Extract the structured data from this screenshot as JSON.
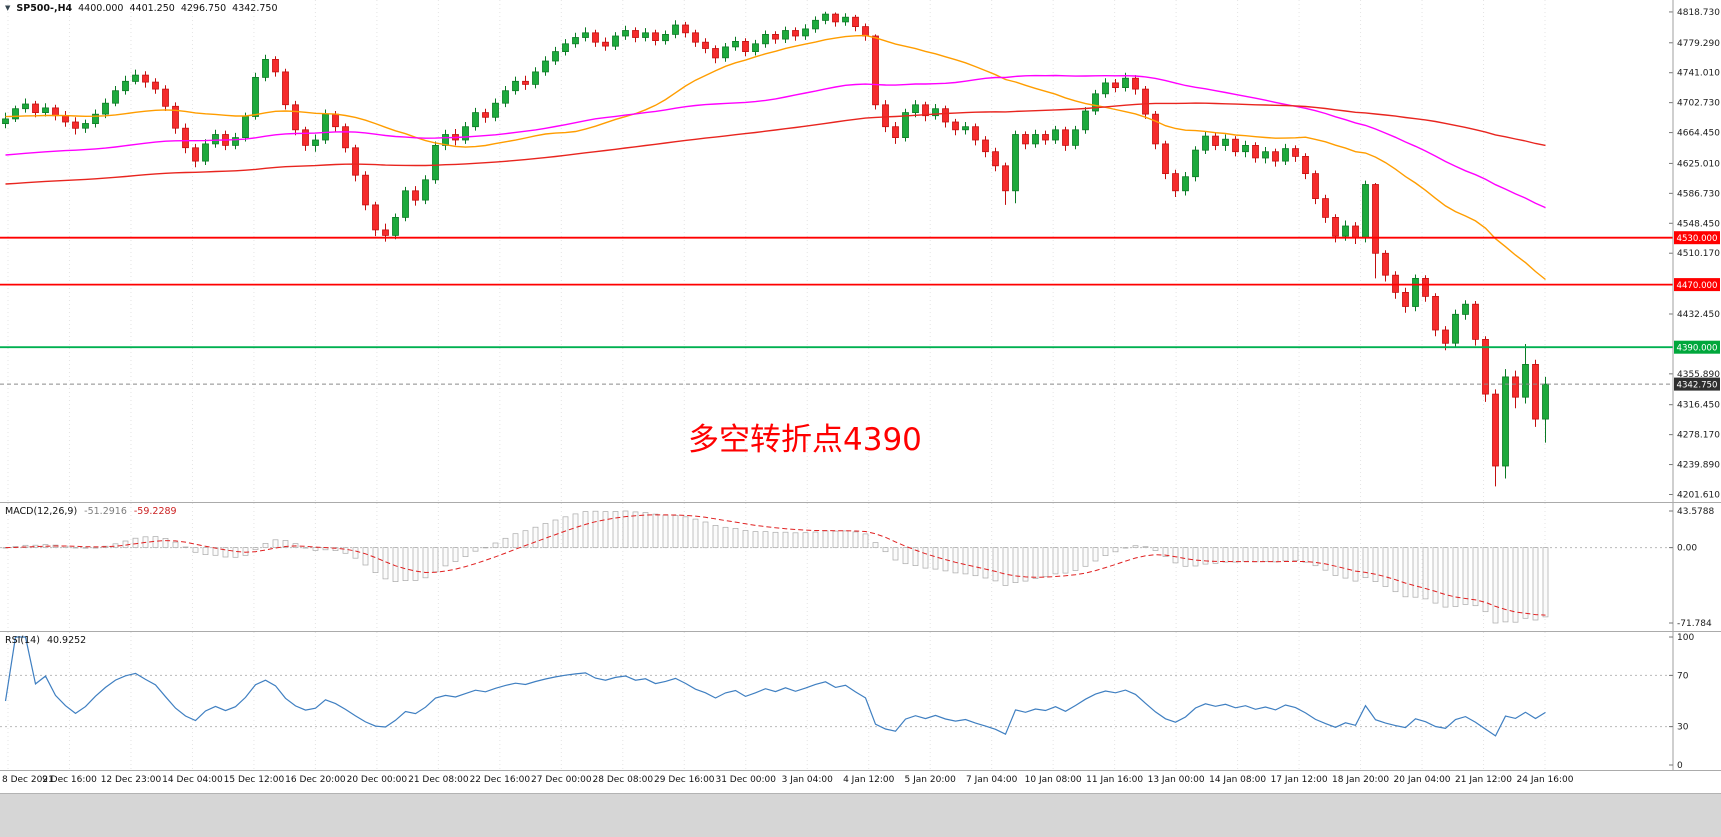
{
  "chart_data": {
    "type": "candlestick",
    "symbol_header": {
      "symbol": "SP500-,H4",
      "open": "4400.000",
      "high": "4401.250",
      "low": "4296.750",
      "close": "4342.750"
    },
    "annotation": {
      "text": "多空转折点4390",
      "color": "#ff0000"
    },
    "ylim": {
      "top": 4834,
      "bottom": 4192
    },
    "price_axis_labels": [
      4818.73,
      4779.29,
      4741.01,
      4702.73,
      4664.45,
      4625.01,
      4586.73,
      4548.45,
      4510.17,
      4432.45,
      4355.89,
      4316.45,
      4278.17,
      4239.89,
      4201.61
    ],
    "levels": [
      {
        "value": 4530.0,
        "label": "4530.000",
        "color": "#ff0000",
        "badge": "#ff0000"
      },
      {
        "value": 4470.0,
        "label": "4470.000",
        "color": "#ff0000",
        "badge": "#ff0000"
      },
      {
        "value": 4390.0,
        "label": "4390.000",
        "color": "#00b050",
        "badge": "#00a73c"
      }
    ],
    "current_price": {
      "value": 4342.75,
      "label": "4342.750",
      "badge": "#2f2f2f"
    },
    "candle_colors": {
      "up": "#1caa3c",
      "up_border": "#0b7a24",
      "down": "#f52b2b",
      "down_border": "#c40f0f"
    },
    "moving_averages": [
      {
        "period": 30,
        "color": "#ff9d00",
        "seed": 4685
      },
      {
        "period": 60,
        "color": "#ff00ff",
        "seed": 4635
      },
      {
        "period": 120,
        "color": "#e8251f",
        "seed": 4598
      }
    ],
    "candles": [
      [
        4676,
        4690,
        4670,
        4682
      ],
      [
        4682,
        4699,
        4678,
        4695
      ],
      [
        4695,
        4708,
        4690,
        4701
      ],
      [
        4701,
        4705,
        4684,
        4690
      ],
      [
        4690,
        4702,
        4685,
        4696
      ],
      [
        4696,
        4700,
        4680,
        4686
      ],
      [
        4686,
        4692,
        4672,
        4678
      ],
      [
        4678,
        4684,
        4662,
        4670
      ],
      [
        4670,
        4681,
        4664,
        4676
      ],
      [
        4676,
        4694,
        4671,
        4688
      ],
      [
        4688,
        4708,
        4683,
        4702
      ],
      [
        4702,
        4724,
        4698,
        4718
      ],
      [
        4718,
        4737,
        4713,
        4730
      ],
      [
        4730,
        4745,
        4726,
        4738
      ],
      [
        4738,
        4743,
        4722,
        4729
      ],
      [
        4729,
        4734,
        4714,
        4720
      ],
      [
        4720,
        4725,
        4692,
        4698
      ],
      [
        4698,
        4703,
        4663,
        4670
      ],
      [
        4670,
        4676,
        4638,
        4645
      ],
      [
        4645,
        4650,
        4620,
        4628
      ],
      [
        4628,
        4656,
        4623,
        4650
      ],
      [
        4650,
        4668,
        4645,
        4662
      ],
      [
        4662,
        4667,
        4642,
        4648
      ],
      [
        4648,
        4664,
        4643,
        4658
      ],
      [
        4658,
        4690,
        4653,
        4685
      ],
      [
        4685,
        4741,
        4681,
        4735
      ],
      [
        4735,
        4764,
        4730,
        4758
      ],
      [
        4758,
        4762,
        4736,
        4742
      ],
      [
        4742,
        4746,
        4694,
        4700
      ],
      [
        4700,
        4705,
        4661,
        4668
      ],
      [
        4668,
        4672,
        4641,
        4648
      ],
      [
        4648,
        4662,
        4640,
        4655
      ],
      [
        4655,
        4694,
        4650,
        4688
      ],
      [
        4688,
        4692,
        4665,
        4672
      ],
      [
        4672,
        4676,
        4639,
        4645
      ],
      [
        4645,
        4649,
        4602,
        4610
      ],
      [
        4610,
        4615,
        4565,
        4572
      ],
      [
        4572,
        4576,
        4532,
        4540
      ],
      [
        4540,
        4548,
        4525,
        4533
      ],
      [
        4533,
        4561,
        4528,
        4556
      ],
      [
        4556,
        4595,
        4551,
        4590
      ],
      [
        4590,
        4596,
        4571,
        4578
      ],
      [
        4578,
        4610,
        4573,
        4604
      ],
      [
        4604,
        4653,
        4599,
        4648
      ],
      [
        4648,
        4668,
        4642,
        4662
      ],
      [
        4662,
        4669,
        4648,
        4655
      ],
      [
        4655,
        4678,
        4650,
        4672
      ],
      [
        4672,
        4696,
        4667,
        4690
      ],
      [
        4690,
        4695,
        4677,
        4684
      ],
      [
        4684,
        4708,
        4679,
        4702
      ],
      [
        4702,
        4724,
        4697,
        4718
      ],
      [
        4718,
        4736,
        4713,
        4730
      ],
      [
        4730,
        4737,
        4719,
        4726
      ],
      [
        4726,
        4748,
        4721,
        4742
      ],
      [
        4742,
        4762,
        4737,
        4756
      ],
      [
        4756,
        4774,
        4751,
        4768
      ],
      [
        4768,
        4784,
        4763,
        4778
      ],
      [
        4778,
        4792,
        4773,
        4786
      ],
      [
        4786,
        4799,
        4781,
        4792
      ],
      [
        4792,
        4796,
        4774,
        4780
      ],
      [
        4780,
        4786,
        4769,
        4775
      ],
      [
        4775,
        4793,
        4770,
        4788
      ],
      [
        4788,
        4801,
        4783,
        4795
      ],
      [
        4795,
        4799,
        4780,
        4786
      ],
      [
        4786,
        4798,
        4781,
        4792
      ],
      [
        4792,
        4796,
        4776,
        4782
      ],
      [
        4782,
        4795,
        4777,
        4790
      ],
      [
        4790,
        4808,
        4785,
        4802
      ],
      [
        4802,
        4806,
        4786,
        4792
      ],
      [
        4792,
        4796,
        4774,
        4780
      ],
      [
        4780,
        4785,
        4766,
        4772
      ],
      [
        4772,
        4776,
        4753,
        4760
      ],
      [
        4760,
        4779,
        4755,
        4774
      ],
      [
        4774,
        4787,
        4769,
        4781
      ],
      [
        4781,
        4785,
        4762,
        4768
      ],
      [
        4768,
        4783,
        4763,
        4778
      ],
      [
        4778,
        4795,
        4773,
        4790
      ],
      [
        4790,
        4794,
        4778,
        4784
      ],
      [
        4784,
        4800,
        4779,
        4795
      ],
      [
        4795,
        4799,
        4782,
        4788
      ],
      [
        4788,
        4803,
        4783,
        4797
      ],
      [
        4797,
        4813,
        4792,
        4808
      ],
      [
        4808,
        4819,
        4803,
        4816
      ],
      [
        4816,
        4818,
        4800,
        4806
      ],
      [
        4806,
        4817,
        4801,
        4812
      ],
      [
        4812,
        4815,
        4794,
        4800
      ],
      [
        4800,
        4804,
        4782,
        4788
      ],
      [
        4788,
        4790,
        4694,
        4700
      ],
      [
        4700,
        4706,
        4665,
        4672
      ],
      [
        4672,
        4678,
        4650,
        4658
      ],
      [
        4658,
        4695,
        4653,
        4690
      ],
      [
        4690,
        4706,
        4684,
        4700
      ],
      [
        4700,
        4704,
        4679,
        4686
      ],
      [
        4686,
        4701,
        4681,
        4695
      ],
      [
        4695,
        4699,
        4671,
        4678
      ],
      [
        4678,
        4682,
        4661,
        4668
      ],
      [
        4668,
        4678,
        4662,
        4672
      ],
      [
        4672,
        4676,
        4648,
        4655
      ],
      [
        4655,
        4660,
        4633,
        4640
      ],
      [
        4640,
        4645,
        4615,
        4622
      ],
      [
        4622,
        4626,
        4572,
        4590
      ],
      [
        4590,
        4667,
        4574,
        4662
      ],
      [
        4662,
        4666,
        4643,
        4650
      ],
      [
        4650,
        4668,
        4645,
        4662
      ],
      [
        4662,
        4667,
        4649,
        4655
      ],
      [
        4655,
        4673,
        4650,
        4668
      ],
      [
        4668,
        4672,
        4641,
        4648
      ],
      [
        4648,
        4673,
        4643,
        4668
      ],
      [
        4668,
        4697,
        4663,
        4692
      ],
      [
        4692,
        4719,
        4687,
        4714
      ],
      [
        4714,
        4734,
        4709,
        4728
      ],
      [
        4728,
        4733,
        4716,
        4722
      ],
      [
        4722,
        4741,
        4717,
        4734
      ],
      [
        4734,
        4738,
        4713,
        4720
      ],
      [
        4720,
        4724,
        4682,
        4688
      ],
      [
        4688,
        4692,
        4643,
        4650
      ],
      [
        4650,
        4654,
        4605,
        4612
      ],
      [
        4612,
        4617,
        4582,
        4590
      ],
      [
        4590,
        4614,
        4584,
        4608
      ],
      [
        4608,
        4647,
        4602,
        4642
      ],
      [
        4642,
        4666,
        4637,
        4660
      ],
      [
        4660,
        4665,
        4642,
        4648
      ],
      [
        4648,
        4662,
        4641,
        4656
      ],
      [
        4656,
        4660,
        4634,
        4640
      ],
      [
        4640,
        4654,
        4633,
        4648
      ],
      [
        4648,
        4652,
        4626,
        4632
      ],
      [
        4632,
        4646,
        4625,
        4640
      ],
      [
        4640,
        4644,
        4621,
        4628
      ],
      [
        4628,
        4650,
        4623,
        4644
      ],
      [
        4644,
        4648,
        4627,
        4634
      ],
      [
        4634,
        4638,
        4605,
        4612
      ],
      [
        4612,
        4616,
        4573,
        4580
      ],
      [
        4580,
        4585,
        4549,
        4556
      ],
      [
        4556,
        4560,
        4524,
        4532
      ],
      [
        4532,
        4552,
        4526,
        4545
      ],
      [
        4545,
        4550,
        4522,
        4530
      ],
      [
        4530,
        4603,
        4524,
        4598
      ],
      [
        4598,
        4600,
        4478,
        4510
      ],
      [
        4510,
        4514,
        4474,
        4482
      ],
      [
        4482,
        4487,
        4452,
        4460
      ],
      [
        4460,
        4466,
        4434,
        4442
      ],
      [
        4442,
        4483,
        4436,
        4478
      ],
      [
        4478,
        4482,
        4448,
        4455
      ],
      [
        4455,
        4459,
        4404,
        4412
      ],
      [
        4412,
        4417,
        4386,
        4395
      ],
      [
        4395,
        4438,
        4390,
        4432
      ],
      [
        4432,
        4450,
        4425,
        4445
      ],
      [
        4445,
        4449,
        4392,
        4400
      ],
      [
        4400,
        4404,
        4320,
        4330
      ],
      [
        4330,
        4336,
        4212,
        4238
      ],
      [
        4238,
        4362,
        4222,
        4352
      ],
      [
        4352,
        4360,
        4312,
        4326
      ],
      [
        4326,
        4394,
        4318,
        4368
      ],
      [
        4368,
        4374,
        4288,
        4298
      ],
      [
        4298,
        4352,
        4268,
        4342.75
      ]
    ],
    "time_labels": [
      "8 Dec 2021",
      "9 Dec 16:00",
      "12 Dec 23:00",
      "14 Dec 04:00",
      "15 Dec 12:00",
      "16 Dec 20:00",
      "20 Dec 00:00",
      "21 Dec 08:00",
      "22 Dec 16:00",
      "27 Dec 00:00",
      "28 Dec 08:00",
      "29 Dec 16:00",
      "31 Dec 00:00",
      "3 Jan 04:00",
      "4 Jan 12:00",
      "5 Jan 20:00",
      "7 Jan 04:00",
      "10 Jan 08:00",
      "11 Jan 16:00",
      "13 Jan 00:00",
      "14 Jan 08:00",
      "17 Jan 12:00",
      "18 Jan 20:00",
      "20 Jan 04:00",
      "21 Jan 12:00",
      "24 Jan 16:00"
    ],
    "macd": {
      "header": "MACD(12,26,9)",
      "value_main": "-51.2916",
      "value_signal": "-59.2289",
      "fast": 12,
      "slow": 26,
      "signal_period": 9,
      "scale": {
        "top": "43.5788",
        "zero": "0.00",
        "bottom": "-71.784"
      },
      "bar_fill": "#fbfbfb",
      "bar_stroke": "#a9a9a9",
      "signal_color": "#e02020"
    },
    "rsi": {
      "header": "RSI(14)",
      "value": "40.9252",
      "period": 14,
      "levels": [
        70,
        30
      ],
      "scale": {
        "top": "100",
        "upper": "70",
        "lower": "30",
        "bottom": "0"
      },
      "line_color": "#3f7fc1"
    }
  }
}
